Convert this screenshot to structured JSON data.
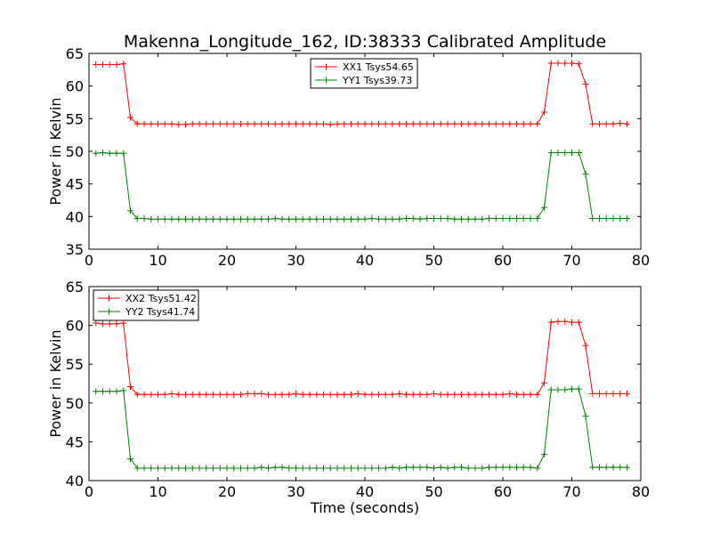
{
  "title": "Makenna_Longitude_162, ID:38333 Calibrated Amplitude",
  "chart_data": [
    {
      "type": "line",
      "ylabel": "Power in Kelvin",
      "xlabel": "",
      "xlim": [
        0,
        80
      ],
      "ylim": [
        35,
        65
      ],
      "xticks": [
        0,
        10,
        20,
        30,
        40,
        50,
        60,
        70,
        80
      ],
      "yticks": [
        35,
        40,
        45,
        50,
        55,
        60,
        65
      ],
      "legend_position": "upper-center",
      "grid": false,
      "series": [
        {
          "name": "XX1 Tsys54.65",
          "color": "#ff0000",
          "x": [
            1,
            2,
            3,
            4,
            5,
            6,
            7,
            8,
            9,
            10,
            11,
            12,
            13,
            14,
            15,
            16,
            17,
            18,
            19,
            20,
            21,
            22,
            23,
            24,
            25,
            26,
            27,
            28,
            29,
            30,
            31,
            32,
            33,
            34,
            35,
            36,
            37,
            38,
            39,
            40,
            41,
            42,
            43,
            44,
            45,
            46,
            47,
            48,
            49,
            50,
            51,
            52,
            53,
            54,
            55,
            56,
            57,
            58,
            59,
            60,
            61,
            62,
            63,
            64,
            65,
            66,
            67,
            68,
            69,
            70,
            71,
            72,
            73,
            74,
            75,
            76,
            77,
            78
          ],
          "y": [
            63.3,
            63.3,
            63.3,
            63.3,
            63.4,
            55.2,
            54.2,
            54.2,
            54.2,
            54.2,
            54.2,
            54.2,
            54.1,
            54.1,
            54.2,
            54.2,
            54.2,
            54.2,
            54.2,
            54.2,
            54.2,
            54.2,
            54.2,
            54.2,
            54.2,
            54.2,
            54.2,
            54.2,
            54.2,
            54.2,
            54.2,
            54.2,
            54.2,
            54.2,
            54.1,
            54.2,
            54.2,
            54.2,
            54.2,
            54.2,
            54.2,
            54.2,
            54.2,
            54.2,
            54.2,
            54.2,
            54.2,
            54.2,
            54.2,
            54.2,
            54.2,
            54.2,
            54.2,
            54.2,
            54.2,
            54.2,
            54.2,
            54.2,
            54.2,
            54.2,
            54.2,
            54.2,
            54.2,
            54.2,
            54.2,
            56.0,
            63.5,
            63.5,
            63.5,
            63.5,
            63.4,
            60.3,
            54.2,
            54.2,
            54.2,
            54.2,
            54.3,
            54.2
          ]
        },
        {
          "name": "YY1 Tsys39.73",
          "color": "#008000",
          "x": [
            1,
            2,
            3,
            4,
            5,
            6,
            7,
            8,
            9,
            10,
            11,
            12,
            13,
            14,
            15,
            16,
            17,
            18,
            19,
            20,
            21,
            22,
            23,
            24,
            25,
            26,
            27,
            28,
            29,
            30,
            31,
            32,
            33,
            34,
            35,
            36,
            37,
            38,
            39,
            40,
            41,
            42,
            43,
            44,
            45,
            46,
            47,
            48,
            49,
            50,
            51,
            52,
            53,
            54,
            55,
            56,
            57,
            58,
            59,
            60,
            61,
            62,
            63,
            64,
            65,
            66,
            67,
            68,
            69,
            70,
            71,
            72,
            73,
            74,
            75,
            76,
            77,
            78
          ],
          "y": [
            49.7,
            49.8,
            49.7,
            49.7,
            49.7,
            40.9,
            39.7,
            39.7,
            39.6,
            39.6,
            39.6,
            39.6,
            39.6,
            39.6,
            39.6,
            39.6,
            39.6,
            39.6,
            39.6,
            39.6,
            39.6,
            39.6,
            39.6,
            39.6,
            39.6,
            39.6,
            39.7,
            39.6,
            39.6,
            39.6,
            39.6,
            39.6,
            39.6,
            39.6,
            39.6,
            39.6,
            39.6,
            39.6,
            39.6,
            39.6,
            39.7,
            39.6,
            39.6,
            39.6,
            39.6,
            39.7,
            39.7,
            39.6,
            39.7,
            39.7,
            39.7,
            39.7,
            39.6,
            39.6,
            39.6,
            39.6,
            39.6,
            39.7,
            39.7,
            39.7,
            39.7,
            39.7,
            39.7,
            39.7,
            39.7,
            41.4,
            49.8,
            49.8,
            49.8,
            49.8,
            49.8,
            46.5,
            39.7,
            39.7,
            39.7,
            39.7,
            39.7,
            39.7
          ]
        }
      ]
    },
    {
      "type": "line",
      "ylabel": "Power in Kelvin",
      "xlabel": "Time (seconds)",
      "xlim": [
        0,
        80
      ],
      "ylim": [
        40,
        65
      ],
      "xticks": [
        0,
        10,
        20,
        30,
        40,
        50,
        60,
        70,
        80
      ],
      "yticks": [
        40,
        45,
        50,
        55,
        60,
        65
      ],
      "legend_position": "upper-left",
      "grid": false,
      "series": [
        {
          "name": "XX2 Tsys51.42",
          "color": "#ff0000",
          "x": [
            1,
            2,
            3,
            4,
            5,
            6,
            7,
            8,
            9,
            10,
            11,
            12,
            13,
            14,
            15,
            16,
            17,
            18,
            19,
            20,
            21,
            22,
            23,
            24,
            25,
            26,
            27,
            28,
            29,
            30,
            31,
            32,
            33,
            34,
            35,
            36,
            37,
            38,
            39,
            40,
            41,
            42,
            43,
            44,
            45,
            46,
            47,
            48,
            49,
            50,
            51,
            52,
            53,
            54,
            55,
            56,
            57,
            58,
            59,
            60,
            61,
            62,
            63,
            64,
            65,
            66,
            67,
            68,
            69,
            70,
            71,
            72,
            73,
            74,
            75,
            76,
            77,
            78
          ],
          "y": [
            60.3,
            60.2,
            60.2,
            60.2,
            60.3,
            52.1,
            51.1,
            51.1,
            51.1,
            51.1,
            51.1,
            51.2,
            51.1,
            51.1,
            51.1,
            51.1,
            51.1,
            51.1,
            51.1,
            51.1,
            51.1,
            51.1,
            51.2,
            51.2,
            51.2,
            51.1,
            51.1,
            51.1,
            51.1,
            51.2,
            51.1,
            51.1,
            51.1,
            51.1,
            51.1,
            51.1,
            51.1,
            51.1,
            51.2,
            51.1,
            51.1,
            51.1,
            51.1,
            51.1,
            51.2,
            51.1,
            51.1,
            51.1,
            51.1,
            51.2,
            51.1,
            51.1,
            51.1,
            51.1,
            51.1,
            51.1,
            51.1,
            51.1,
            51.1,
            51.1,
            51.2,
            51.1,
            51.1,
            51.1,
            51.1,
            52.6,
            60.4,
            60.5,
            60.5,
            60.4,
            60.4,
            57.4,
            51.2,
            51.2,
            51.2,
            51.2,
            51.2,
            51.2
          ]
        },
        {
          "name": "YY2 Tsys41.74",
          "color": "#008000",
          "x": [
            1,
            2,
            3,
            4,
            5,
            6,
            7,
            8,
            9,
            10,
            11,
            12,
            13,
            14,
            15,
            16,
            17,
            18,
            19,
            20,
            21,
            22,
            23,
            24,
            25,
            26,
            27,
            28,
            29,
            30,
            31,
            32,
            33,
            34,
            35,
            36,
            37,
            38,
            39,
            40,
            41,
            42,
            43,
            44,
            45,
            46,
            47,
            48,
            49,
            50,
            51,
            52,
            53,
            54,
            55,
            56,
            57,
            58,
            59,
            60,
            61,
            62,
            63,
            64,
            65,
            66,
            67,
            68,
            69,
            70,
            71,
            72,
            73,
            74,
            75,
            76,
            77,
            78
          ],
          "y": [
            51.5,
            51.5,
            51.5,
            51.5,
            51.6,
            42.8,
            41.6,
            41.6,
            41.6,
            41.6,
            41.6,
            41.6,
            41.6,
            41.6,
            41.6,
            41.6,
            41.6,
            41.6,
            41.6,
            41.6,
            41.6,
            41.6,
            41.6,
            41.6,
            41.7,
            41.6,
            41.7,
            41.7,
            41.6,
            41.6,
            41.6,
            41.6,
            41.6,
            41.6,
            41.6,
            41.6,
            41.6,
            41.6,
            41.6,
            41.6,
            41.6,
            41.6,
            41.6,
            41.7,
            41.6,
            41.7,
            41.7,
            41.7,
            41.7,
            41.6,
            41.7,
            41.6,
            41.7,
            41.7,
            41.6,
            41.6,
            41.6,
            41.7,
            41.7,
            41.7,
            41.7,
            41.7,
            41.7,
            41.7,
            41.6,
            43.4,
            51.7,
            51.7,
            51.7,
            51.8,
            51.8,
            48.3,
            41.7,
            41.7,
            41.7,
            41.7,
            41.7,
            41.7
          ]
        }
      ]
    }
  ]
}
